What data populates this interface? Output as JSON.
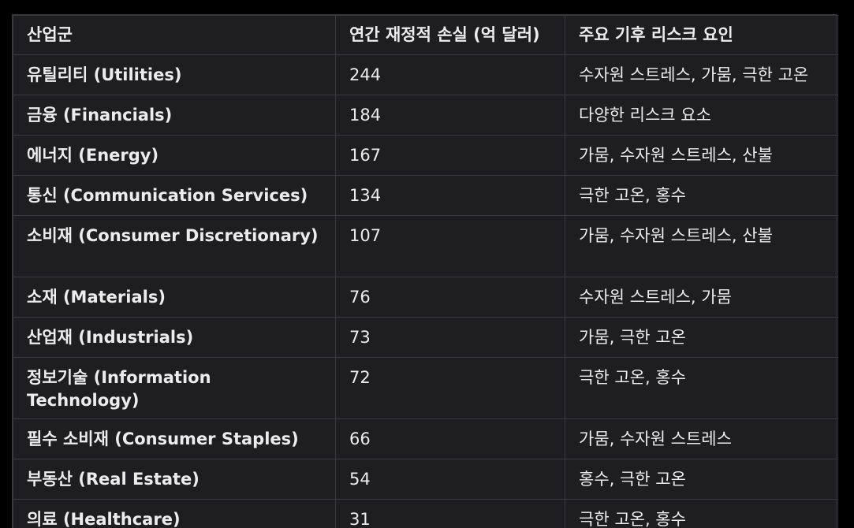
{
  "table": {
    "headers": [
      "산업군",
      "연간 재정적 손실 (억 달러)",
      "주요 기후 리스크 요인"
    ],
    "rows": [
      {
        "sector": "유틸리티 (Utilities)",
        "loss": "244",
        "risk": "수자원 스트레스, 가뭄, 극한 고온"
      },
      {
        "sector": "금융 (Financials)",
        "loss": "184",
        "risk": "다양한 리스크 요소"
      },
      {
        "sector": "에너지 (Energy)",
        "loss": "167",
        "risk": "가뭄, 수자원 스트레스, 산불"
      },
      {
        "sector": "통신 (Communication Services)",
        "loss": "134",
        "risk": "극한 고온, 홍수"
      },
      {
        "sector": "소비재 (Consumer Discretionary)",
        "loss": "107",
        "risk": "가뭄, 수자원 스트레스, 산불"
      },
      {
        "sector": "소재 (Materials)",
        "loss": "76",
        "risk": "수자원 스트레스, 가뭄"
      },
      {
        "sector": "산업재 (Industrials)",
        "loss": "73",
        "risk": "가뭄, 극한 고온"
      },
      {
        "sector": "정보기술 (Information Technology)",
        "loss": "72",
        "risk": "극한 고온, 홍수"
      },
      {
        "sector": "필수 소비재 (Consumer Staples)",
        "loss": "66",
        "risk": "가뭄, 수자원 스트레스"
      },
      {
        "sector": "부동산 (Real Estate)",
        "loss": "54",
        "risk": "홍수, 극한 고온"
      },
      {
        "sector": "의료 (Healthcare)",
        "loss": "31",
        "risk": "극한 고온, 홍수"
      }
    ]
  }
}
